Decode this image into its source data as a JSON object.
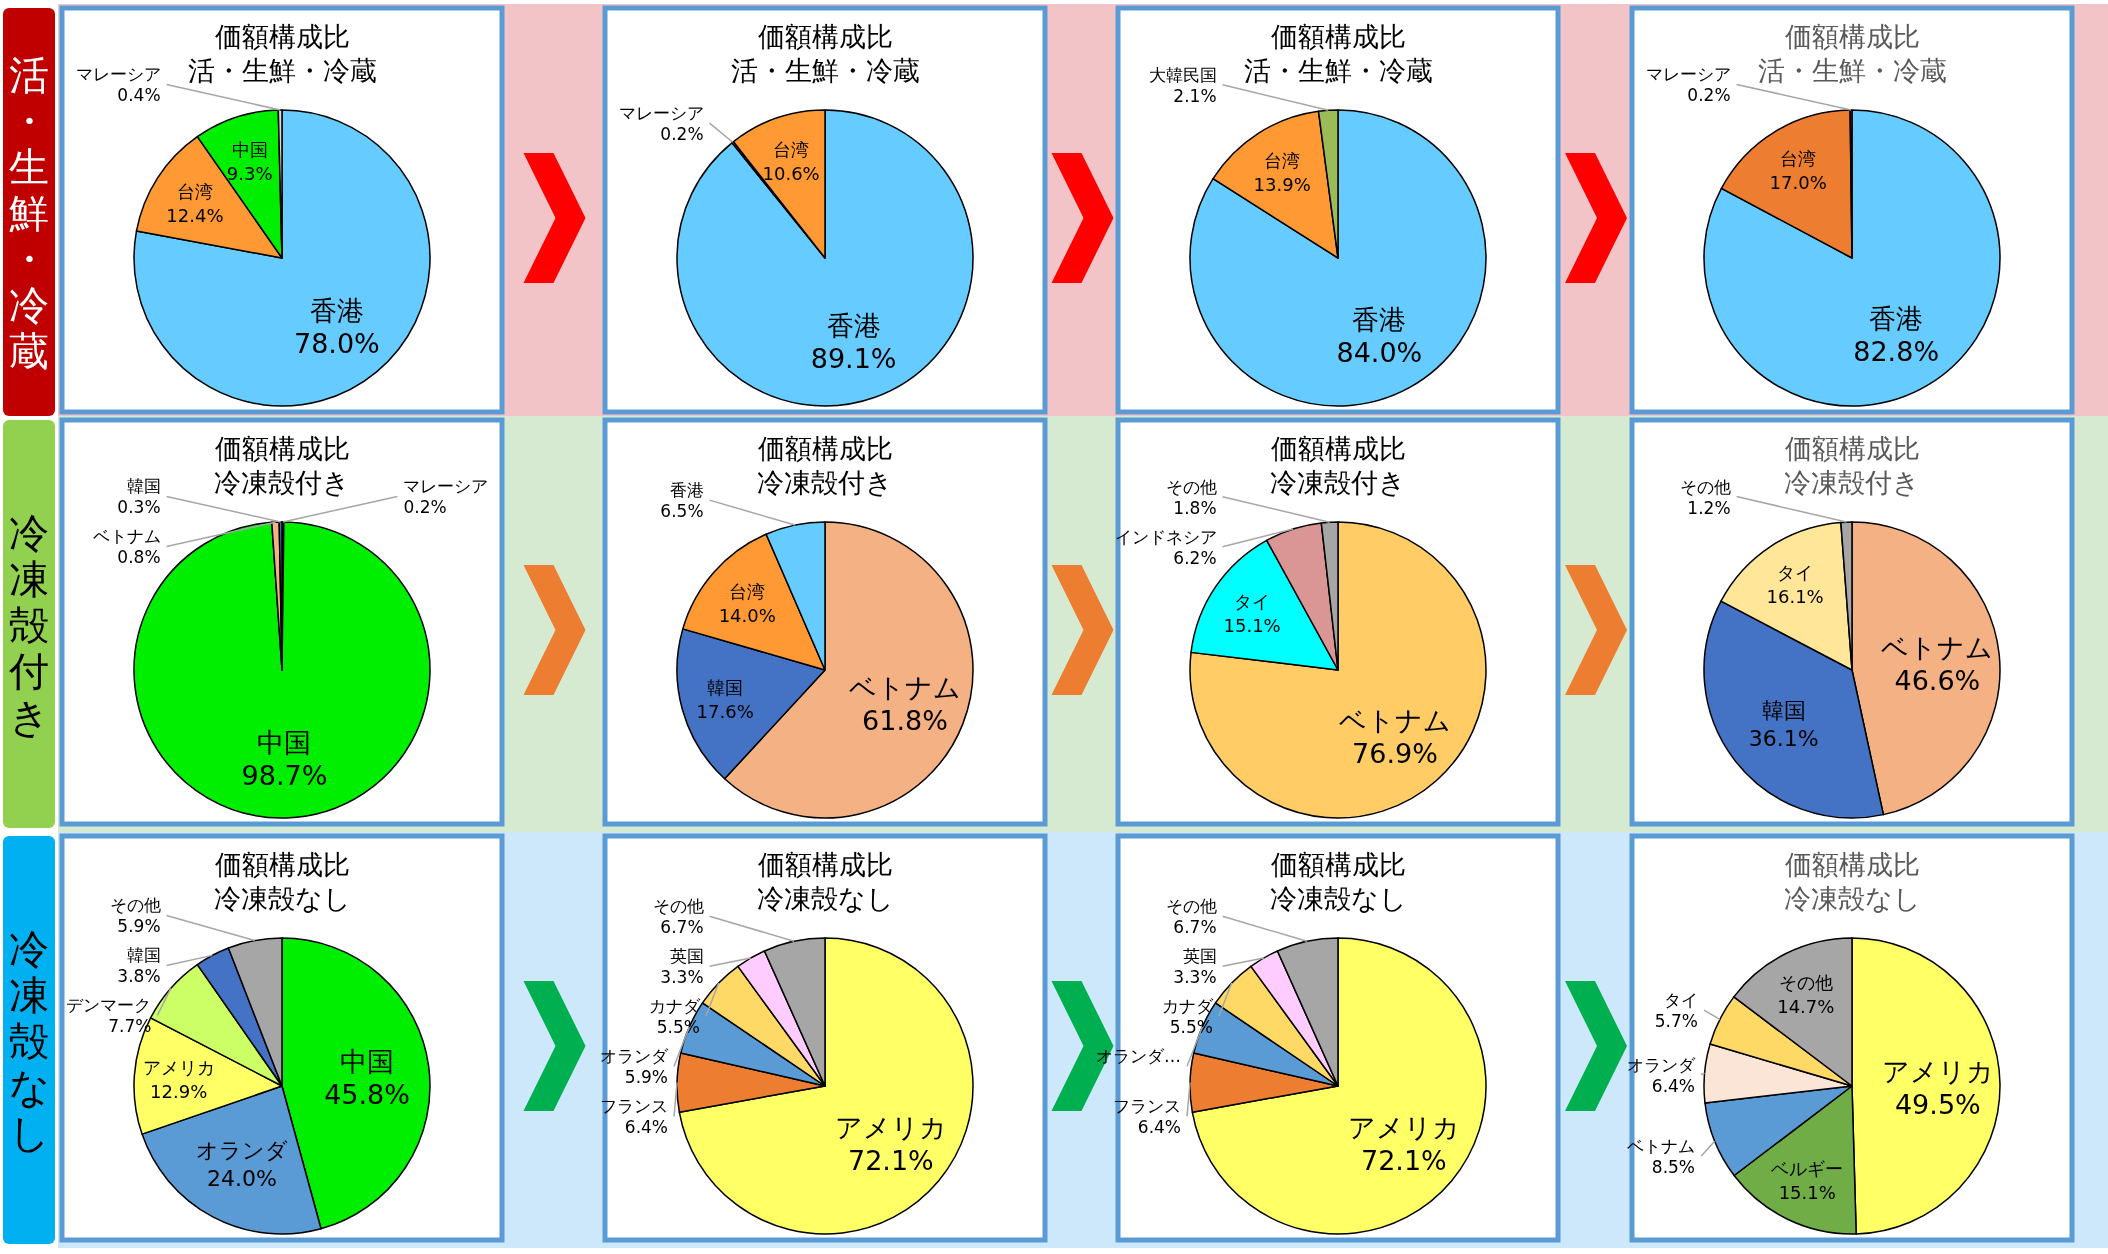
{
  "chart_data": [
    {
      "type": "pie",
      "title": "価額構成比",
      "subtitle": "活・生鮮・冷蔵",
      "annotations": [
        "活・生鮮・冷蔵"
      ],
      "categories": [
        "香港",
        "台湾",
        "中国",
        "マレーシア"
      ],
      "values": [
        78.0,
        12.4,
        9.3,
        0.4
      ],
      "value_labels": [
        "78.0%",
        "12.4%",
        "9.3%",
        "0.4%"
      ],
      "colors": [
        "#66ccff",
        "#ff9933",
        "#00ee00",
        "#d9d9d9"
      ]
    },
    {
      "type": "pie",
      "title": "価額構成比",
      "subtitle": "活・生鮮・冷蔵",
      "categories": [
        "香港",
        "マレーシア",
        "台湾"
      ],
      "values": [
        89.1,
        0.2,
        10.6
      ],
      "value_labels": [
        "89.1%",
        "0.2%",
        "10.6%"
      ],
      "colors": [
        "#66ccff",
        "#7f7f7f",
        "#ff9933"
      ]
    },
    {
      "type": "pie",
      "title": "価額構成比",
      "subtitle": "活・生鮮・冷蔵",
      "categories": [
        "香港",
        "台湾",
        "大韓民国"
      ],
      "values": [
        84.0,
        13.9,
        2.1
      ],
      "value_labels": [
        "84.0%",
        "13.9%",
        "2.1%"
      ],
      "colors": [
        "#66ccff",
        "#ff9933",
        "#9bbb59"
      ]
    },
    {
      "type": "pie",
      "title": "価額構成比",
      "subtitle": "活・生鮮・冷蔵",
      "categories": [
        "香港",
        "台湾",
        "マレーシア"
      ],
      "values": [
        82.8,
        17.0,
        0.2
      ],
      "value_labels": [
        "82.8%",
        "17.0%",
        "0.2%"
      ],
      "colors": [
        "#66ccff",
        "#ed7d31",
        "#7f6000"
      ]
    },
    {
      "type": "pie",
      "title": "価額構成比",
      "subtitle": "冷凍殻付き",
      "annotations": [
        "冷凍殻付き"
      ],
      "categories": [
        "マレーシア",
        "中国",
        "ベトナム",
        "韓国"
      ],
      "values": [
        0.2,
        98.7,
        0.8,
        0.3
      ],
      "value_labels": [
        "0.2%",
        "98.7%",
        "0.8%",
        "0.3%"
      ],
      "colors": [
        "#333333",
        "#00ee00",
        "#f4b183",
        "#4472c4"
      ]
    },
    {
      "type": "pie",
      "title": "価額構成比",
      "subtitle": "冷凍殻付き",
      "categories": [
        "ベトナム",
        "韓国",
        "台湾",
        "香港"
      ],
      "values": [
        61.8,
        17.6,
        14.0,
        6.5
      ],
      "value_labels": [
        "61.8%",
        "17.6%",
        "14.0%",
        "6.5%"
      ],
      "colors": [
        "#f4b183",
        "#4472c4",
        "#ff9933",
        "#66ccff"
      ]
    },
    {
      "type": "pie",
      "title": "価額構成比",
      "subtitle": "冷凍殻付き",
      "categories": [
        "ベトナム",
        "タイ",
        "インドネシア",
        "その他"
      ],
      "values": [
        76.9,
        15.1,
        6.2,
        1.8
      ],
      "value_labels": [
        "76.9%",
        "15.1%",
        "6.2%",
        "1.8%"
      ],
      "colors": [
        "#ffcc66",
        "#00ffff",
        "#d99694",
        "#a6a6a6"
      ]
    },
    {
      "type": "pie",
      "title": "価額構成比",
      "subtitle": "冷凍殻付き",
      "categories": [
        "ベトナム",
        "韓国",
        "タイ",
        "その他"
      ],
      "values": [
        46.6,
        36.1,
        16.1,
        1.2
      ],
      "value_labels": [
        "46.6%",
        "36.1%",
        "16.1%",
        "1.2%"
      ],
      "colors": [
        "#f4b183",
        "#4472c4",
        "#ffe699",
        "#a6a6a6"
      ]
    },
    {
      "type": "pie",
      "title": "価額構成比",
      "subtitle": "冷凍殻なし",
      "annotations": [
        "冷凍殻なし"
      ],
      "categories": [
        "中国",
        "オランダ",
        "アメリカ",
        "デンマーク",
        "韓国",
        "その他"
      ],
      "values": [
        45.8,
        24.0,
        12.9,
        7.7,
        3.8,
        5.9
      ],
      "value_labels": [
        "45.8%",
        "24.0%",
        "12.9%",
        "7.7%",
        "3.8%",
        "5.9%"
      ],
      "colors": [
        "#00ee00",
        "#5b9bd5",
        "#ffff66",
        "#ccff66",
        "#4472c4",
        "#a6a6a6"
      ]
    },
    {
      "type": "pie",
      "title": "価額構成比",
      "subtitle": "冷凍殻なし",
      "categories": [
        "アメリカ",
        "フランス",
        "オランダ",
        "カナダ",
        "英国",
        "その他"
      ],
      "values": [
        72.1,
        6.4,
        5.9,
        5.5,
        3.3,
        6.7
      ],
      "value_labels": [
        "72.1%",
        "6.4%",
        "5.9%",
        "5.5%",
        "3.3%",
        "6.7%"
      ],
      "colors": [
        "#ffff66",
        "#ed7d31",
        "#5b9bd5",
        "#ffd966",
        "#ffccff",
        "#a6a6a6"
      ]
    },
    {
      "type": "pie",
      "title": "価額構成比",
      "subtitle": "冷凍殻なし",
      "categories": [
        "アメリカ",
        "フランス",
        "オランダ…",
        "カナダ",
        "英国",
        "その他"
      ],
      "values": [
        72.1,
        6.4,
        5.9,
        5.5,
        3.3,
        6.7
      ],
      "value_labels": [
        "72.1%",
        "6.4%",
        null,
        "5.5%",
        "3.3%",
        "6.7%"
      ],
      "colors": [
        "#ffff66",
        "#ed7d31",
        "#5b9bd5",
        "#ffd966",
        "#ffccff",
        "#a6a6a6"
      ]
    },
    {
      "type": "pie",
      "title": "価額構成比",
      "subtitle": "冷凍殻なし",
      "categories": [
        "アメリカ",
        "ベルギー",
        "ベトナム",
        "オランダ",
        "タイ",
        "その他"
      ],
      "values": [
        49.5,
        15.1,
        8.5,
        6.4,
        5.7,
        14.7
      ],
      "value_labels": [
        "49.5%",
        "15.1%",
        "8.5%",
        "6.4%",
        "5.7%",
        "14.7%"
      ],
      "colors": [
        "#ffff66",
        "#70ad47",
        "#5b9bd5",
        "#fbe5d6",
        "#ffd966",
        "#a6a6a6"
      ]
    }
  ]
}
